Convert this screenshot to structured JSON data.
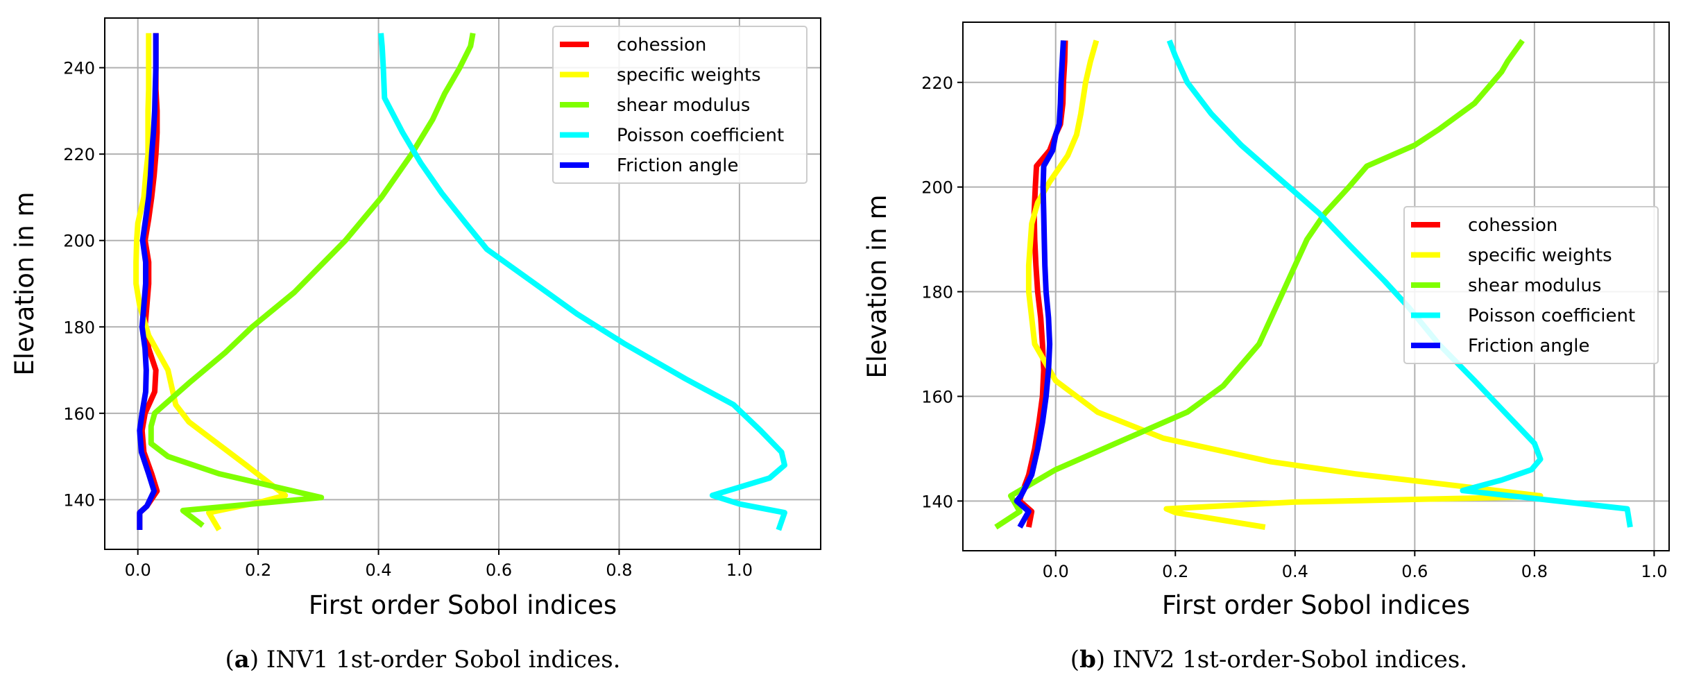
{
  "chart_data": [
    {
      "type": "line",
      "panel": "a",
      "caption_letter": "a",
      "caption_text": " INV1 1st-order Sobol indices.",
      "xlabel": "First order Sobol indices",
      "ylabel": "Elevation in m",
      "xlim": [
        -0.055,
        1.135
      ],
      "ylim": [
        128.5,
        251.5
      ],
      "xticks": [
        0.0,
        0.2,
        0.4,
        0.6,
        0.8,
        1.0
      ],
      "xtick_labels": [
        "0.0",
        "0.2",
        "0.4",
        "0.6",
        "0.8",
        "1.0"
      ],
      "yticks": [
        140,
        160,
        180,
        200,
        220,
        240
      ],
      "ytick_labels": [
        "140",
        "160",
        "180",
        "200",
        "220",
        "240"
      ],
      "grid": true,
      "legend_position": "top-right",
      "series": [
        {
          "name": "cohession",
          "color": "#ff0000",
          "points": [
            [
              0.003,
              133
            ],
            [
              0.003,
              137
            ],
            [
              0.015,
              138.5
            ],
            [
              0.032,
              142
            ],
            [
              0.023,
              146
            ],
            [
              0.01,
              151
            ],
            [
              0.007,
              156
            ],
            [
              0.012,
              160
            ],
            [
              0.028,
              165
            ],
            [
              0.03,
              170
            ],
            [
              0.018,
              175
            ],
            [
              0.012,
              180
            ],
            [
              0.015,
              185
            ],
            [
              0.018,
              190
            ],
            [
              0.018,
              195
            ],
            [
              0.012,
              200
            ],
            [
              0.018,
              205
            ],
            [
              0.023,
              210
            ],
            [
              0.027,
              215
            ],
            [
              0.03,
              220
            ],
            [
              0.032,
              225
            ],
            [
              0.032,
              230
            ],
            [
              0.03,
              235
            ],
            [
              0.03,
              240
            ],
            [
              0.03,
              248
            ]
          ]
        },
        {
          "name": "specific weights",
          "color": "#ffff00",
          "points": [
            [
              0.135,
              133
            ],
            [
              0.118,
              137
            ],
            [
              0.205,
              139.5
            ],
            [
              0.245,
              141
            ],
            [
              0.18,
              148
            ],
            [
              0.085,
              158
            ],
            [
              0.063,
              162
            ],
            [
              0.05,
              170
            ],
            [
              0.018,
              178
            ],
            [
              0.003,
              185
            ],
            [
              -0.003,
              190
            ],
            [
              -0.003,
              195
            ],
            [
              -0.002,
              200
            ],
            [
              0.0,
              204
            ],
            [
              0.01,
              210
            ],
            [
              0.013,
              215
            ],
            [
              0.017,
              220
            ],
            [
              0.017,
              225
            ],
            [
              0.017,
              230
            ],
            [
              0.018,
              235
            ],
            [
              0.018,
              240
            ],
            [
              0.018,
              248
            ]
          ]
        },
        {
          "name": "shear modulus",
          "color": "#7fff00",
          "points": [
            [
              0.108,
              134
            ],
            [
              0.075,
              137.5
            ],
            [
              0.305,
              140.5
            ],
            [
              0.135,
              146
            ],
            [
              0.05,
              150
            ],
            [
              0.022,
              153
            ],
            [
              0.022,
              157
            ],
            [
              0.028,
              160
            ],
            [
              0.085,
              167
            ],
            [
              0.145,
              174
            ],
            [
              0.19,
              180
            ],
            [
              0.26,
              188
            ],
            [
              0.345,
              200
            ],
            [
              0.405,
              210
            ],
            [
              0.455,
              220
            ],
            [
              0.49,
              228
            ],
            [
              0.51,
              234
            ],
            [
              0.535,
              240
            ],
            [
              0.553,
              245
            ],
            [
              0.557,
              248
            ]
          ]
        },
        {
          "name": "Poisson coefficient",
          "color": "#00ffff",
          "points": [
            [
              1.065,
              133
            ],
            [
              1.075,
              137
            ],
            [
              1.0,
              139
            ],
            [
              0.955,
              141
            ],
            [
              1.05,
              145
            ],
            [
              1.075,
              148
            ],
            [
              1.07,
              151
            ],
            [
              1.035,
              156
            ],
            [
              0.99,
              162
            ],
            [
              0.91,
              168
            ],
            [
              0.81,
              176
            ],
            [
              0.73,
              183
            ],
            [
              0.65,
              191
            ],
            [
              0.58,
              198
            ],
            [
              0.545,
              204
            ],
            [
              0.505,
              211
            ],
            [
              0.47,
              218
            ],
            [
              0.44,
              225
            ],
            [
              0.41,
              233
            ],
            [
              0.408,
              240
            ],
            [
              0.406,
              245
            ],
            [
              0.404,
              248
            ]
          ]
        },
        {
          "name": "Friction angle",
          "color": "#0000ff",
          "points": [
            [
              0.003,
              133
            ],
            [
              0.003,
              137
            ],
            [
              0.015,
              138.5
            ],
            [
              0.027,
              142
            ],
            [
              0.018,
              146
            ],
            [
              0.006,
              151
            ],
            [
              0.003,
              156
            ],
            [
              0.007,
              160
            ],
            [
              0.013,
              165
            ],
            [
              0.014,
              170
            ],
            [
              0.012,
              175
            ],
            [
              0.007,
              180
            ],
            [
              0.01,
              185
            ],
            [
              0.013,
              190
            ],
            [
              0.013,
              195
            ],
            [
              0.008,
              200
            ],
            [
              0.013,
              205
            ],
            [
              0.018,
              210
            ],
            [
              0.021,
              215
            ],
            [
              0.023,
              220
            ],
            [
              0.026,
              225
            ],
            [
              0.028,
              230
            ],
            [
              0.029,
              235
            ],
            [
              0.03,
              240
            ],
            [
              0.03,
              248
            ]
          ]
        }
      ]
    },
    {
      "type": "line",
      "panel": "b",
      "caption_letter": "b",
      "caption_text": " INV2 1st-order-Sobol indices.",
      "xlabel": "First order Sobol indices",
      "ylabel": "Elevation in m",
      "xlim": [
        -0.155,
        1.025
      ],
      "ylim": [
        130.5,
        231.5
      ],
      "xticks": [
        0.0,
        0.2,
        0.4,
        0.6,
        0.8,
        1.0
      ],
      "xtick_labels": [
        "0.0",
        "0.2",
        "0.4",
        "0.6",
        "0.8",
        "1.0"
      ],
      "yticks": [
        140,
        160,
        180,
        200,
        220
      ],
      "ytick_labels": [
        "140",
        "160",
        "180",
        "200",
        "220"
      ],
      "grid": true,
      "legend_position": "center-right",
      "series": [
        {
          "name": "cohession",
          "color": "#ff0000",
          "points": [
            [
              -0.045,
              135
            ],
            [
              -0.04,
              138
            ],
            [
              -0.06,
              140
            ],
            [
              -0.058,
              141
            ],
            [
              -0.045,
              145
            ],
            [
              -0.035,
              150
            ],
            [
              -0.028,
              155
            ],
            [
              -0.022,
              160
            ],
            [
              -0.02,
              165
            ],
            [
              -0.022,
              170
            ],
            [
              -0.025,
              175
            ],
            [
              -0.03,
              180
            ],
            [
              -0.033,
              185
            ],
            [
              -0.035,
              190
            ],
            [
              -0.036,
              195
            ],
            [
              -0.034,
              200
            ],
            [
              -0.032,
              204
            ],
            [
              -0.01,
              207
            ],
            [
              0.0,
              210
            ],
            [
              0.008,
              212
            ],
            [
              0.012,
              216
            ],
            [
              0.013,
              220
            ],
            [
              0.015,
              224
            ],
            [
              0.016,
              228
            ]
          ]
        },
        {
          "name": "specific weights",
          "color": "#ffff00",
          "points": [
            [
              0.35,
              135
            ],
            [
              0.2,
              137.8
            ],
            [
              0.185,
              138.5
            ],
            [
              0.4,
              139.8
            ],
            [
              0.76,
              140.7
            ],
            [
              0.81,
              141
            ],
            [
              0.65,
              143.2
            ],
            [
              0.5,
              145.2
            ],
            [
              0.36,
              147.5
            ],
            [
              0.18,
              152
            ],
            [
              0.07,
              157
            ],
            [
              0.0,
              163
            ],
            [
              -0.035,
              170
            ],
            [
              -0.045,
              180
            ],
            [
              -0.045,
              185
            ],
            [
              -0.04,
              193
            ],
            [
              -0.03,
              197
            ],
            [
              -0.01,
              201
            ],
            [
              0.02,
              206
            ],
            [
              0.035,
              210
            ],
            [
              0.042,
              214
            ],
            [
              0.05,
              220
            ],
            [
              0.058,
              224
            ],
            [
              0.068,
              228
            ]
          ]
        },
        {
          "name": "shear modulus",
          "color": "#7fff00",
          "points": [
            [
              -0.1,
              135
            ],
            [
              -0.06,
              138
            ],
            [
              -0.075,
              141
            ],
            [
              0.0,
              146
            ],
            [
              0.1,
              151
            ],
            [
              0.22,
              157
            ],
            [
              0.28,
              162
            ],
            [
              0.34,
              170
            ],
            [
              0.38,
              180
            ],
            [
              0.4,
              185
            ],
            [
              0.42,
              190
            ],
            [
              0.45,
              195
            ],
            [
              0.49,
              200
            ],
            [
              0.52,
              204
            ],
            [
              0.6,
              208
            ],
            [
              0.64,
              211
            ],
            [
              0.7,
              216
            ],
            [
              0.745,
              222
            ],
            [
              0.755,
              224
            ],
            [
              0.78,
              228
            ]
          ]
        },
        {
          "name": "Poisson coefficient",
          "color": "#00ffff",
          "points": [
            [
              0.96,
              135
            ],
            [
              0.955,
              138.5
            ],
            [
              0.76,
              141
            ],
            [
              0.68,
              142
            ],
            [
              0.745,
              144
            ],
            [
              0.795,
              146
            ],
            [
              0.81,
              148
            ],
            [
              0.8,
              151
            ],
            [
              0.75,
              157
            ],
            [
              0.7,
              163
            ],
            [
              0.64,
              170
            ],
            [
              0.59,
              177
            ],
            [
              0.55,
              182
            ],
            [
              0.49,
              189
            ],
            [
              0.44,
              195
            ],
            [
              0.37,
              202
            ],
            [
              0.31,
              208
            ],
            [
              0.26,
              214
            ],
            [
              0.22,
              220
            ],
            [
              0.2,
              225
            ],
            [
              0.19,
              228
            ]
          ]
        },
        {
          "name": "Friction angle",
          "color": "#0000ff",
          "points": [
            [
              -0.06,
              135
            ],
            [
              -0.045,
              138
            ],
            [
              -0.065,
              140
            ],
            [
              -0.058,
              141
            ],
            [
              -0.04,
              145
            ],
            [
              -0.03,
              150
            ],
            [
              -0.022,
              155
            ],
            [
              -0.016,
              160
            ],
            [
              -0.012,
              165
            ],
            [
              -0.01,
              170
            ],
            [
              -0.012,
              175
            ],
            [
              -0.016,
              180
            ],
            [
              -0.018,
              185
            ],
            [
              -0.019,
              190
            ],
            [
              -0.02,
              195
            ],
            [
              -0.021,
              200
            ],
            [
              -0.02,
              204
            ],
            [
              -0.005,
              207
            ],
            [
              0.0,
              210
            ],
            [
              0.006,
              212
            ],
            [
              0.008,
              216
            ],
            [
              0.009,
              220
            ],
            [
              0.011,
              224
            ],
            [
              0.013,
              228
            ]
          ]
        }
      ]
    }
  ]
}
